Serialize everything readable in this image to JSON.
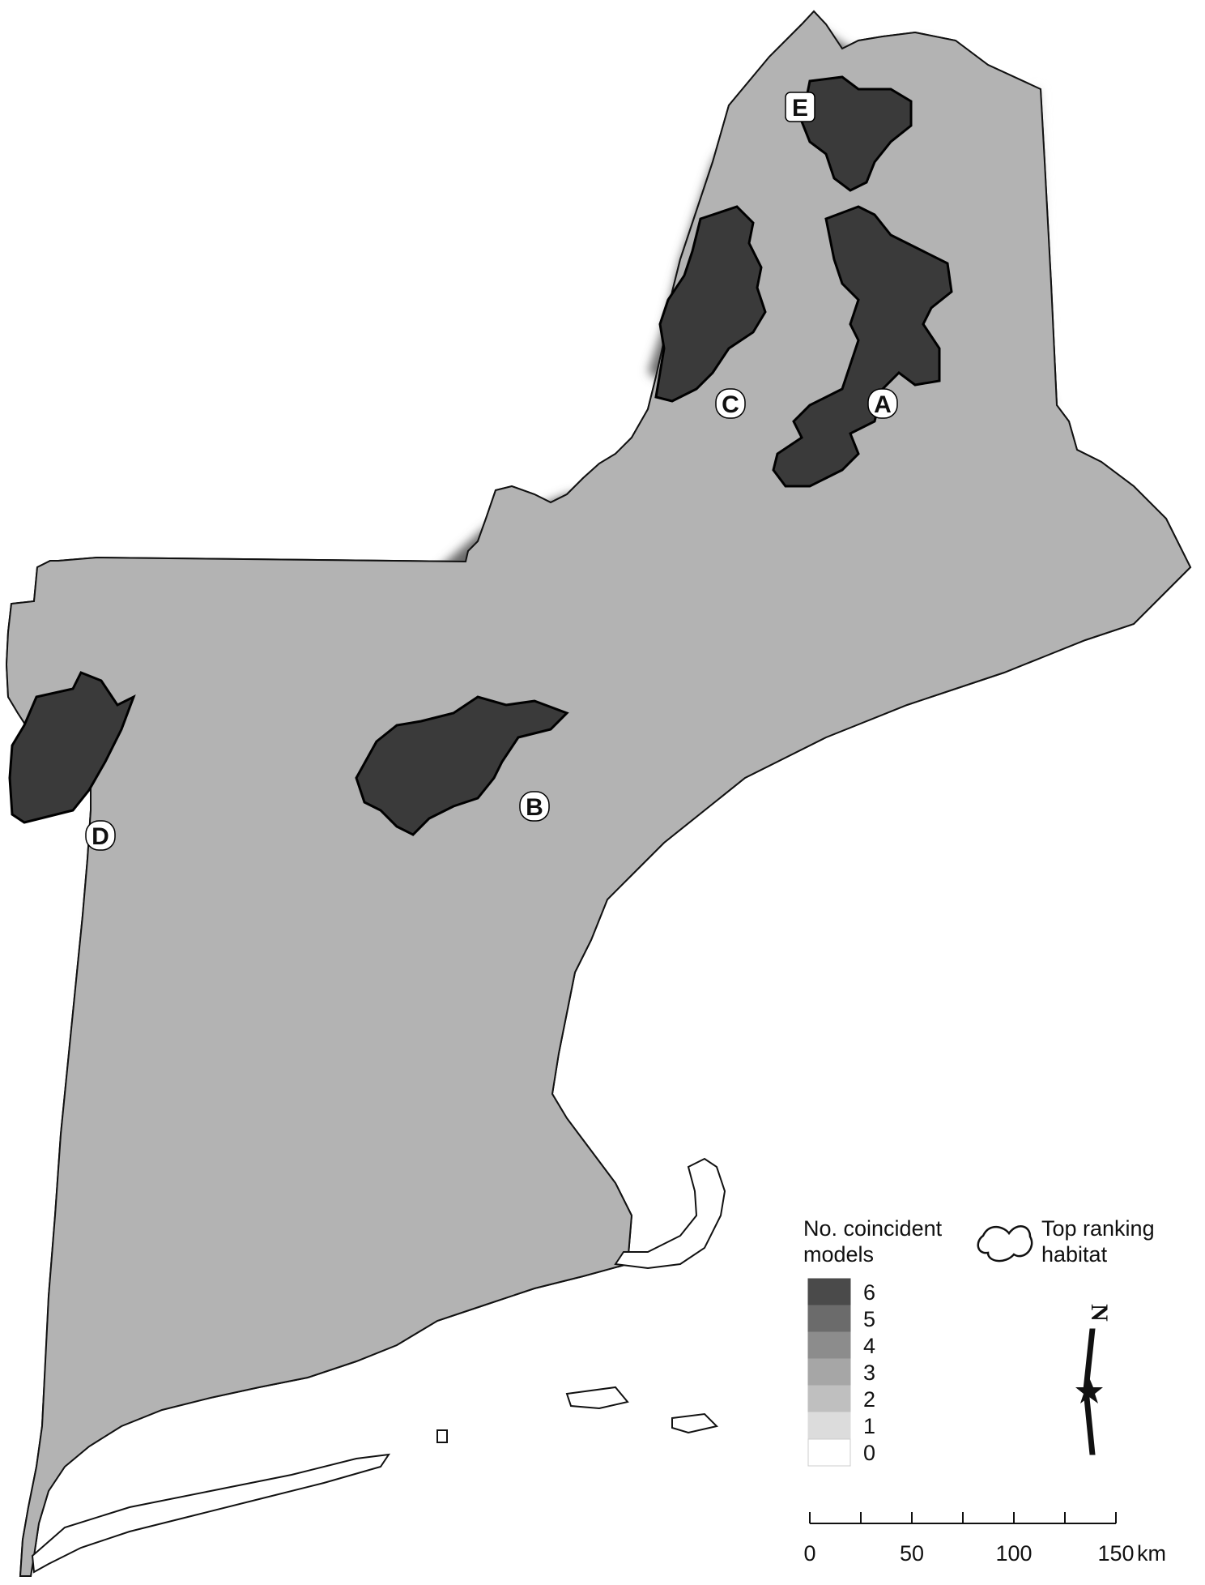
{
  "legend": {
    "title_line1": "No. coincident",
    "title_line2": "models",
    "habitat_line1": "Top ranking",
    "habitat_line2": "habitat",
    "classes": [
      {
        "label": "6",
        "color": "#4a4a4a"
      },
      {
        "label": "5",
        "color": "#6b6b6b"
      },
      {
        "label": "4",
        "color": "#8c8c8c"
      },
      {
        "label": "3",
        "color": "#a6a6a6"
      },
      {
        "label": "2",
        "color": "#bfbfbf"
      },
      {
        "label": "1",
        "color": "#dcdcdc"
      },
      {
        "label": "0",
        "color": "#ffffff"
      }
    ]
  },
  "sites": [
    "A",
    "B",
    "C",
    "D",
    "E"
  ],
  "north_arrow": {
    "letter": "N"
  },
  "scale_bar": {
    "ticks": [
      "0",
      "50",
      "100",
      "150"
    ],
    "unit": "km"
  }
}
